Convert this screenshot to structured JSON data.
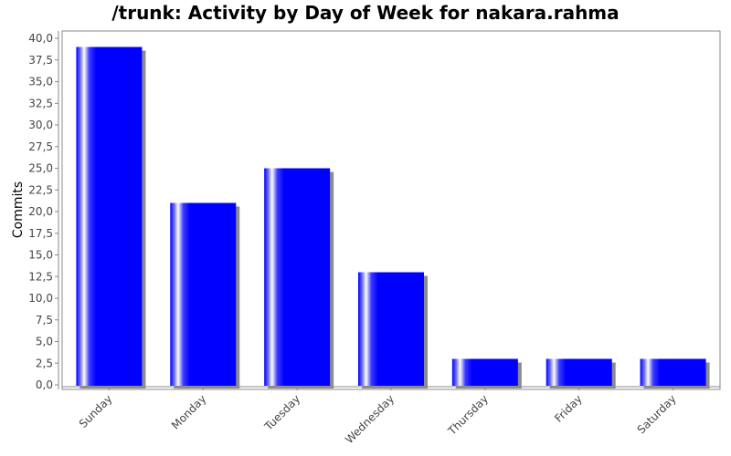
{
  "chart_data": {
    "type": "bar",
    "title": "/trunk: Activity by Day of Week for nakara.rahma",
    "xlabel": "",
    "ylabel": "Commits",
    "categories": [
      "Sunday",
      "Monday",
      "Tuesday",
      "Wednesday",
      "Thursday",
      "Friday",
      "Saturday"
    ],
    "values": [
      39,
      21,
      25,
      13,
      3,
      3,
      3
    ],
    "ylim": [
      0,
      40
    ],
    "yticks": [
      "0,0",
      "2,5",
      "5,0",
      "7,5",
      "10,0",
      "12,5",
      "15,0",
      "17,5",
      "20,0",
      "22,5",
      "25,0",
      "27,5",
      "30,0",
      "32,5",
      "35,0",
      "37,5",
      "40,0"
    ],
    "grid": false,
    "legend": "none",
    "colors": {
      "bar": "#0000ff",
      "shadow": "#8c8c8c",
      "axis": "#888888"
    }
  }
}
